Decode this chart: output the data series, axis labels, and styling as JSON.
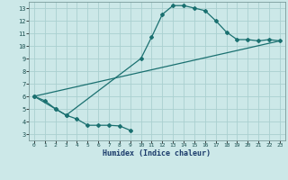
{
  "xlabel": "Humidex (Indice chaleur)",
  "ylabel": "",
  "background_color": "#cce8e8",
  "grid_color": "#aad0d0",
  "line_color": "#1a7070",
  "xlim": [
    -0.5,
    23.5
  ],
  "ylim": [
    2.5,
    13.5
  ],
  "xticks": [
    0,
    1,
    2,
    3,
    4,
    5,
    6,
    7,
    8,
    9,
    10,
    11,
    12,
    13,
    14,
    15,
    16,
    17,
    18,
    19,
    20,
    21,
    22,
    23
  ],
  "yticks": [
    3,
    4,
    5,
    6,
    7,
    8,
    9,
    10,
    11,
    12,
    13
  ],
  "line1_x": [
    0,
    1,
    2,
    3,
    4,
    5,
    6,
    7,
    8,
    9
  ],
  "line1_y": [
    6.0,
    5.65,
    5.0,
    4.5,
    4.2,
    3.7,
    3.7,
    3.7,
    3.65,
    3.3
  ],
  "line2_x": [
    0,
    2,
    3,
    10,
    11,
    12,
    13,
    14,
    15,
    16,
    17,
    18,
    19,
    20,
    21,
    22,
    23
  ],
  "line2_y": [
    6.0,
    5.0,
    4.5,
    9.0,
    10.7,
    12.5,
    13.2,
    13.2,
    13.0,
    12.8,
    12.0,
    11.1,
    10.5,
    10.5,
    10.4,
    10.5,
    10.4
  ],
  "line3_x": [
    0,
    23
  ],
  "line3_y": [
    6.0,
    10.4
  ],
  "marker_size": 2.0,
  "linewidth": 0.9
}
